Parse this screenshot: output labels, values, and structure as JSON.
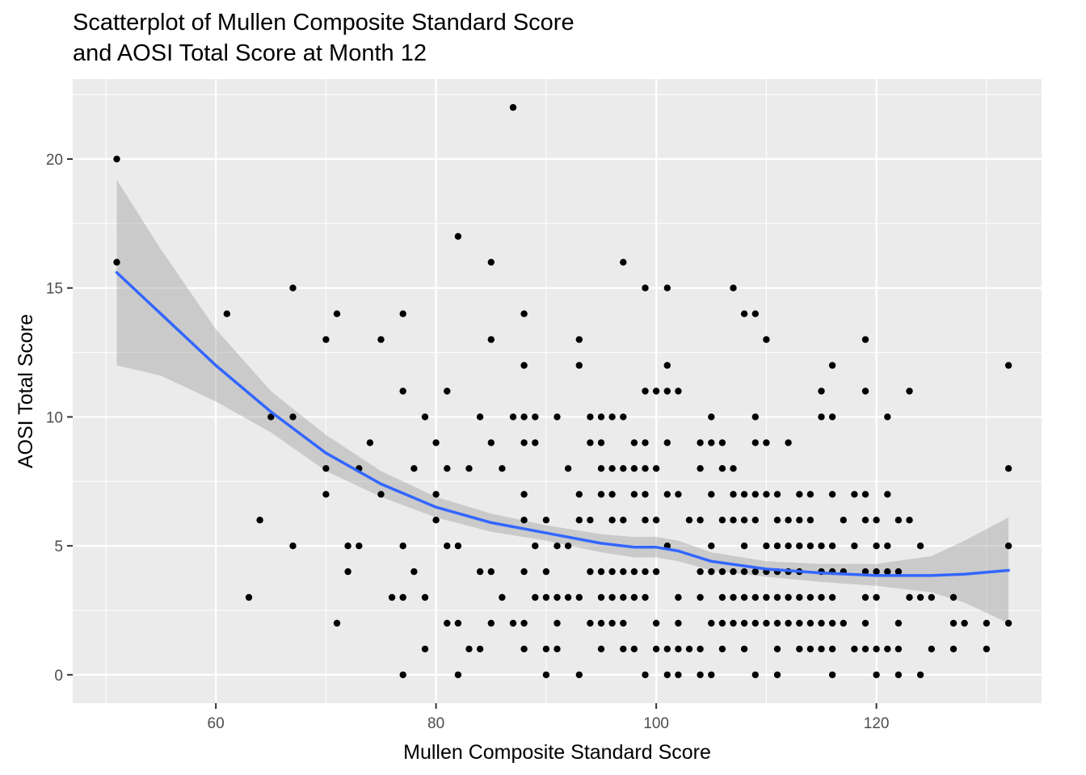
{
  "chart_data": {
    "type": "scatter",
    "title": [
      "Scatterplot of Mullen Composite Standard Score",
      "and AOSI Total Score at Month 12"
    ],
    "xlabel": "Mullen Composite Standard Score",
    "ylabel": "AOSI Total Score",
    "xlim": [
      47,
      135
    ],
    "ylim": [
      -1.1,
      23.1
    ],
    "x_ticks": [
      60,
      80,
      100,
      120
    ],
    "y_ticks": [
      0,
      5,
      10,
      15,
      20
    ],
    "grid": true,
    "legend": "none",
    "colors": {
      "panel": "#ebebeb",
      "grid": "#ffffff",
      "points": "#000000",
      "smooth_line": "#3366ff",
      "ribbon": "#999999"
    },
    "points": [
      [
        51,
        20
      ],
      [
        51,
        16
      ],
      [
        61,
        14
      ],
      [
        63,
        3
      ],
      [
        64,
        6
      ],
      [
        65,
        10
      ],
      [
        67,
        15
      ],
      [
        67,
        10
      ],
      [
        67,
        5
      ],
      [
        70,
        13
      ],
      [
        70,
        8
      ],
      [
        70,
        7
      ],
      [
        71,
        14
      ],
      [
        71,
        2
      ],
      [
        72,
        5
      ],
      [
        72,
        4
      ],
      [
        73,
        8
      ],
      [
        73,
        5
      ],
      [
        74,
        9
      ],
      [
        75,
        13
      ],
      [
        75,
        7
      ],
      [
        76,
        3
      ],
      [
        77,
        14
      ],
      [
        77,
        11
      ],
      [
        77,
        5
      ],
      [
        77,
        3
      ],
      [
        77,
        0
      ],
      [
        78,
        8
      ],
      [
        78,
        4
      ],
      [
        79,
        10
      ],
      [
        79,
        3
      ],
      [
        79,
        1
      ],
      [
        80,
        9
      ],
      [
        80,
        7
      ],
      [
        80,
        6
      ],
      [
        81,
        11
      ],
      [
        81,
        8
      ],
      [
        81,
        5
      ],
      [
        81,
        2
      ],
      [
        82,
        17
      ],
      [
        82,
        5
      ],
      [
        82,
        2
      ],
      [
        82,
        0
      ],
      [
        83,
        8
      ],
      [
        83,
        1
      ],
      [
        84,
        10
      ],
      [
        84,
        4
      ],
      [
        84,
        1
      ],
      [
        85,
        16
      ],
      [
        85,
        13
      ],
      [
        85,
        9
      ],
      [
        85,
        4
      ],
      [
        85,
        2
      ],
      [
        86,
        8
      ],
      [
        86,
        3
      ],
      [
        87,
        22
      ],
      [
        87,
        10
      ],
      [
        87,
        2
      ],
      [
        88,
        14
      ],
      [
        88,
        12
      ],
      [
        88,
        10
      ],
      [
        88,
        9
      ],
      [
        88,
        7
      ],
      [
        88,
        6
      ],
      [
        88,
        4
      ],
      [
        88,
        2
      ],
      [
        88,
        1
      ],
      [
        89,
        10
      ],
      [
        89,
        9
      ],
      [
        89,
        5
      ],
      [
        89,
        3
      ],
      [
        90,
        6
      ],
      [
        90,
        4
      ],
      [
        90,
        3
      ],
      [
        90,
        1
      ],
      [
        90,
        0
      ],
      [
        91,
        10
      ],
      [
        91,
        5
      ],
      [
        91,
        3
      ],
      [
        91,
        2
      ],
      [
        91,
        1
      ],
      [
        92,
        8
      ],
      [
        92,
        5
      ],
      [
        92,
        3
      ],
      [
        93,
        13
      ],
      [
        93,
        12
      ],
      [
        93,
        7
      ],
      [
        93,
        6
      ],
      [
        93,
        3
      ],
      [
        93,
        0
      ],
      [
        94,
        10
      ],
      [
        94,
        9
      ],
      [
        94,
        6
      ],
      [
        94,
        4
      ],
      [
        94,
        2
      ],
      [
        95,
        10
      ],
      [
        95,
        9
      ],
      [
        95,
        8
      ],
      [
        95,
        7
      ],
      [
        95,
        4
      ],
      [
        95,
        3
      ],
      [
        95,
        2
      ],
      [
        95,
        1
      ],
      [
        96,
        10
      ],
      [
        96,
        8
      ],
      [
        96,
        7
      ],
      [
        96,
        6
      ],
      [
        96,
        4
      ],
      [
        96,
        3
      ],
      [
        96,
        2
      ],
      [
        97,
        16
      ],
      [
        97,
        10
      ],
      [
        97,
        8
      ],
      [
        97,
        6
      ],
      [
        97,
        4
      ],
      [
        97,
        3
      ],
      [
        97,
        2
      ],
      [
        97,
        1
      ],
      [
        98,
        9
      ],
      [
        98,
        8
      ],
      [
        98,
        7
      ],
      [
        98,
        4
      ],
      [
        98,
        3
      ],
      [
        98,
        1
      ],
      [
        99,
        15
      ],
      [
        99,
        11
      ],
      [
        99,
        9
      ],
      [
        99,
        8
      ],
      [
        99,
        7
      ],
      [
        99,
        6
      ],
      [
        99,
        4
      ],
      [
        99,
        3
      ],
      [
        99,
        0
      ],
      [
        100,
        11
      ],
      [
        100,
        8
      ],
      [
        100,
        6
      ],
      [
        100,
        4
      ],
      [
        100,
        2
      ],
      [
        100,
        1
      ],
      [
        101,
        15
      ],
      [
        101,
        12
      ],
      [
        101,
        11
      ],
      [
        101,
        9
      ],
      [
        101,
        7
      ],
      [
        101,
        5
      ],
      [
        101,
        1
      ],
      [
        101,
        0
      ],
      [
        102,
        11
      ],
      [
        102,
        7
      ],
      [
        102,
        3
      ],
      [
        102,
        2
      ],
      [
        102,
        1
      ],
      [
        102,
        0
      ],
      [
        103,
        6
      ],
      [
        103,
        1
      ],
      [
        104,
        9
      ],
      [
        104,
        8
      ],
      [
        104,
        6
      ],
      [
        104,
        4
      ],
      [
        104,
        3
      ],
      [
        104,
        1
      ],
      [
        104,
        0
      ],
      [
        105,
        10
      ],
      [
        105,
        9
      ],
      [
        105,
        7
      ],
      [
        105,
        5
      ],
      [
        105,
        4
      ],
      [
        105,
        2
      ],
      [
        105,
        0
      ],
      [
        106,
        9
      ],
      [
        106,
        8
      ],
      [
        106,
        6
      ],
      [
        106,
        4
      ],
      [
        106,
        3
      ],
      [
        106,
        2
      ],
      [
        106,
        1
      ],
      [
        107,
        15
      ],
      [
        107,
        8
      ],
      [
        107,
        7
      ],
      [
        107,
        6
      ],
      [
        107,
        4
      ],
      [
        107,
        3
      ],
      [
        107,
        2
      ],
      [
        108,
        14
      ],
      [
        108,
        7
      ],
      [
        108,
        6
      ],
      [
        108,
        5
      ],
      [
        108,
        4
      ],
      [
        108,
        3
      ],
      [
        108,
        2
      ],
      [
        108,
        1
      ],
      [
        109,
        14
      ],
      [
        109,
        10
      ],
      [
        109,
        9
      ],
      [
        109,
        7
      ],
      [
        109,
        6
      ],
      [
        109,
        4
      ],
      [
        109,
        3
      ],
      [
        109,
        2
      ],
      [
        109,
        0
      ],
      [
        110,
        13
      ],
      [
        110,
        9
      ],
      [
        110,
        7
      ],
      [
        110,
        5
      ],
      [
        110,
        4
      ],
      [
        110,
        3
      ],
      [
        110,
        2
      ],
      [
        111,
        7
      ],
      [
        111,
        6
      ],
      [
        111,
        5
      ],
      [
        111,
        4
      ],
      [
        111,
        3
      ],
      [
        111,
        2
      ],
      [
        111,
        1
      ],
      [
        111,
        0
      ],
      [
        112,
        9
      ],
      [
        112,
        6
      ],
      [
        112,
        5
      ],
      [
        112,
        4
      ],
      [
        112,
        3
      ],
      [
        112,
        2
      ],
      [
        113,
        7
      ],
      [
        113,
        6
      ],
      [
        113,
        5
      ],
      [
        113,
        4
      ],
      [
        113,
        3
      ],
      [
        113,
        2
      ],
      [
        113,
        1
      ],
      [
        114,
        7
      ],
      [
        114,
        6
      ],
      [
        114,
        5
      ],
      [
        114,
        3
      ],
      [
        114,
        2
      ],
      [
        114,
        1
      ],
      [
        115,
        11
      ],
      [
        115,
        10
      ],
      [
        115,
        5
      ],
      [
        115,
        4
      ],
      [
        115,
        3
      ],
      [
        115,
        2
      ],
      [
        115,
        1
      ],
      [
        116,
        12
      ],
      [
        116,
        10
      ],
      [
        116,
        7
      ],
      [
        116,
        5
      ],
      [
        116,
        4
      ],
      [
        116,
        3
      ],
      [
        116,
        2
      ],
      [
        116,
        1
      ],
      [
        116,
        0
      ],
      [
        117,
        6
      ],
      [
        117,
        4
      ],
      [
        117,
        2
      ],
      [
        118,
        7
      ],
      [
        118,
        5
      ],
      [
        118,
        1
      ],
      [
        119,
        13
      ],
      [
        119,
        11
      ],
      [
        119,
        7
      ],
      [
        119,
        6
      ],
      [
        119,
        4
      ],
      [
        119,
        3
      ],
      [
        119,
        2
      ],
      [
        119,
        1
      ],
      [
        120,
        6
      ],
      [
        120,
        5
      ],
      [
        120,
        4
      ],
      [
        120,
        3
      ],
      [
        120,
        1
      ],
      [
        120,
        0
      ],
      [
        121,
        10
      ],
      [
        121,
        7
      ],
      [
        121,
        5
      ],
      [
        121,
        4
      ],
      [
        121,
        1
      ],
      [
        122,
        6
      ],
      [
        122,
        4
      ],
      [
        122,
        2
      ],
      [
        122,
        1
      ],
      [
        122,
        0
      ],
      [
        123,
        11
      ],
      [
        123,
        6
      ],
      [
        123,
        3
      ],
      [
        124,
        5
      ],
      [
        124,
        3
      ],
      [
        124,
        0
      ],
      [
        125,
        3
      ],
      [
        125,
        1
      ],
      [
        127,
        3
      ],
      [
        127,
        2
      ],
      [
        127,
        1
      ],
      [
        128,
        2
      ],
      [
        130,
        2
      ],
      [
        130,
        1
      ],
      [
        132,
        12
      ],
      [
        132,
        8
      ],
      [
        132,
        5
      ],
      [
        132,
        2
      ]
    ],
    "smooth": {
      "x": [
        51,
        55,
        60,
        65,
        70,
        75,
        80,
        85,
        90,
        95,
        98,
        100,
        102,
        105,
        110,
        115,
        120,
        125,
        128,
        132
      ],
      "y": [
        15.6,
        14.0,
        12.0,
        10.2,
        8.6,
        7.4,
        6.5,
        5.9,
        5.5,
        5.1,
        4.95,
        4.95,
        4.8,
        4.4,
        4.1,
        3.95,
        3.85,
        3.85,
        3.9,
        4.05
      ],
      "lower": [
        12.0,
        11.6,
        10.6,
        9.4,
        7.9,
        6.9,
        6.1,
        5.55,
        5.2,
        4.75,
        4.55,
        4.55,
        4.4,
        4.05,
        3.8,
        3.6,
        3.45,
        3.2,
        2.8,
        2.0
      ],
      "upper": [
        19.2,
        16.5,
        13.4,
        11.0,
        9.3,
        7.9,
        6.9,
        6.25,
        5.8,
        5.45,
        5.35,
        5.35,
        5.2,
        4.75,
        4.4,
        4.3,
        4.3,
        4.6,
        5.2,
        6.1
      ]
    }
  }
}
